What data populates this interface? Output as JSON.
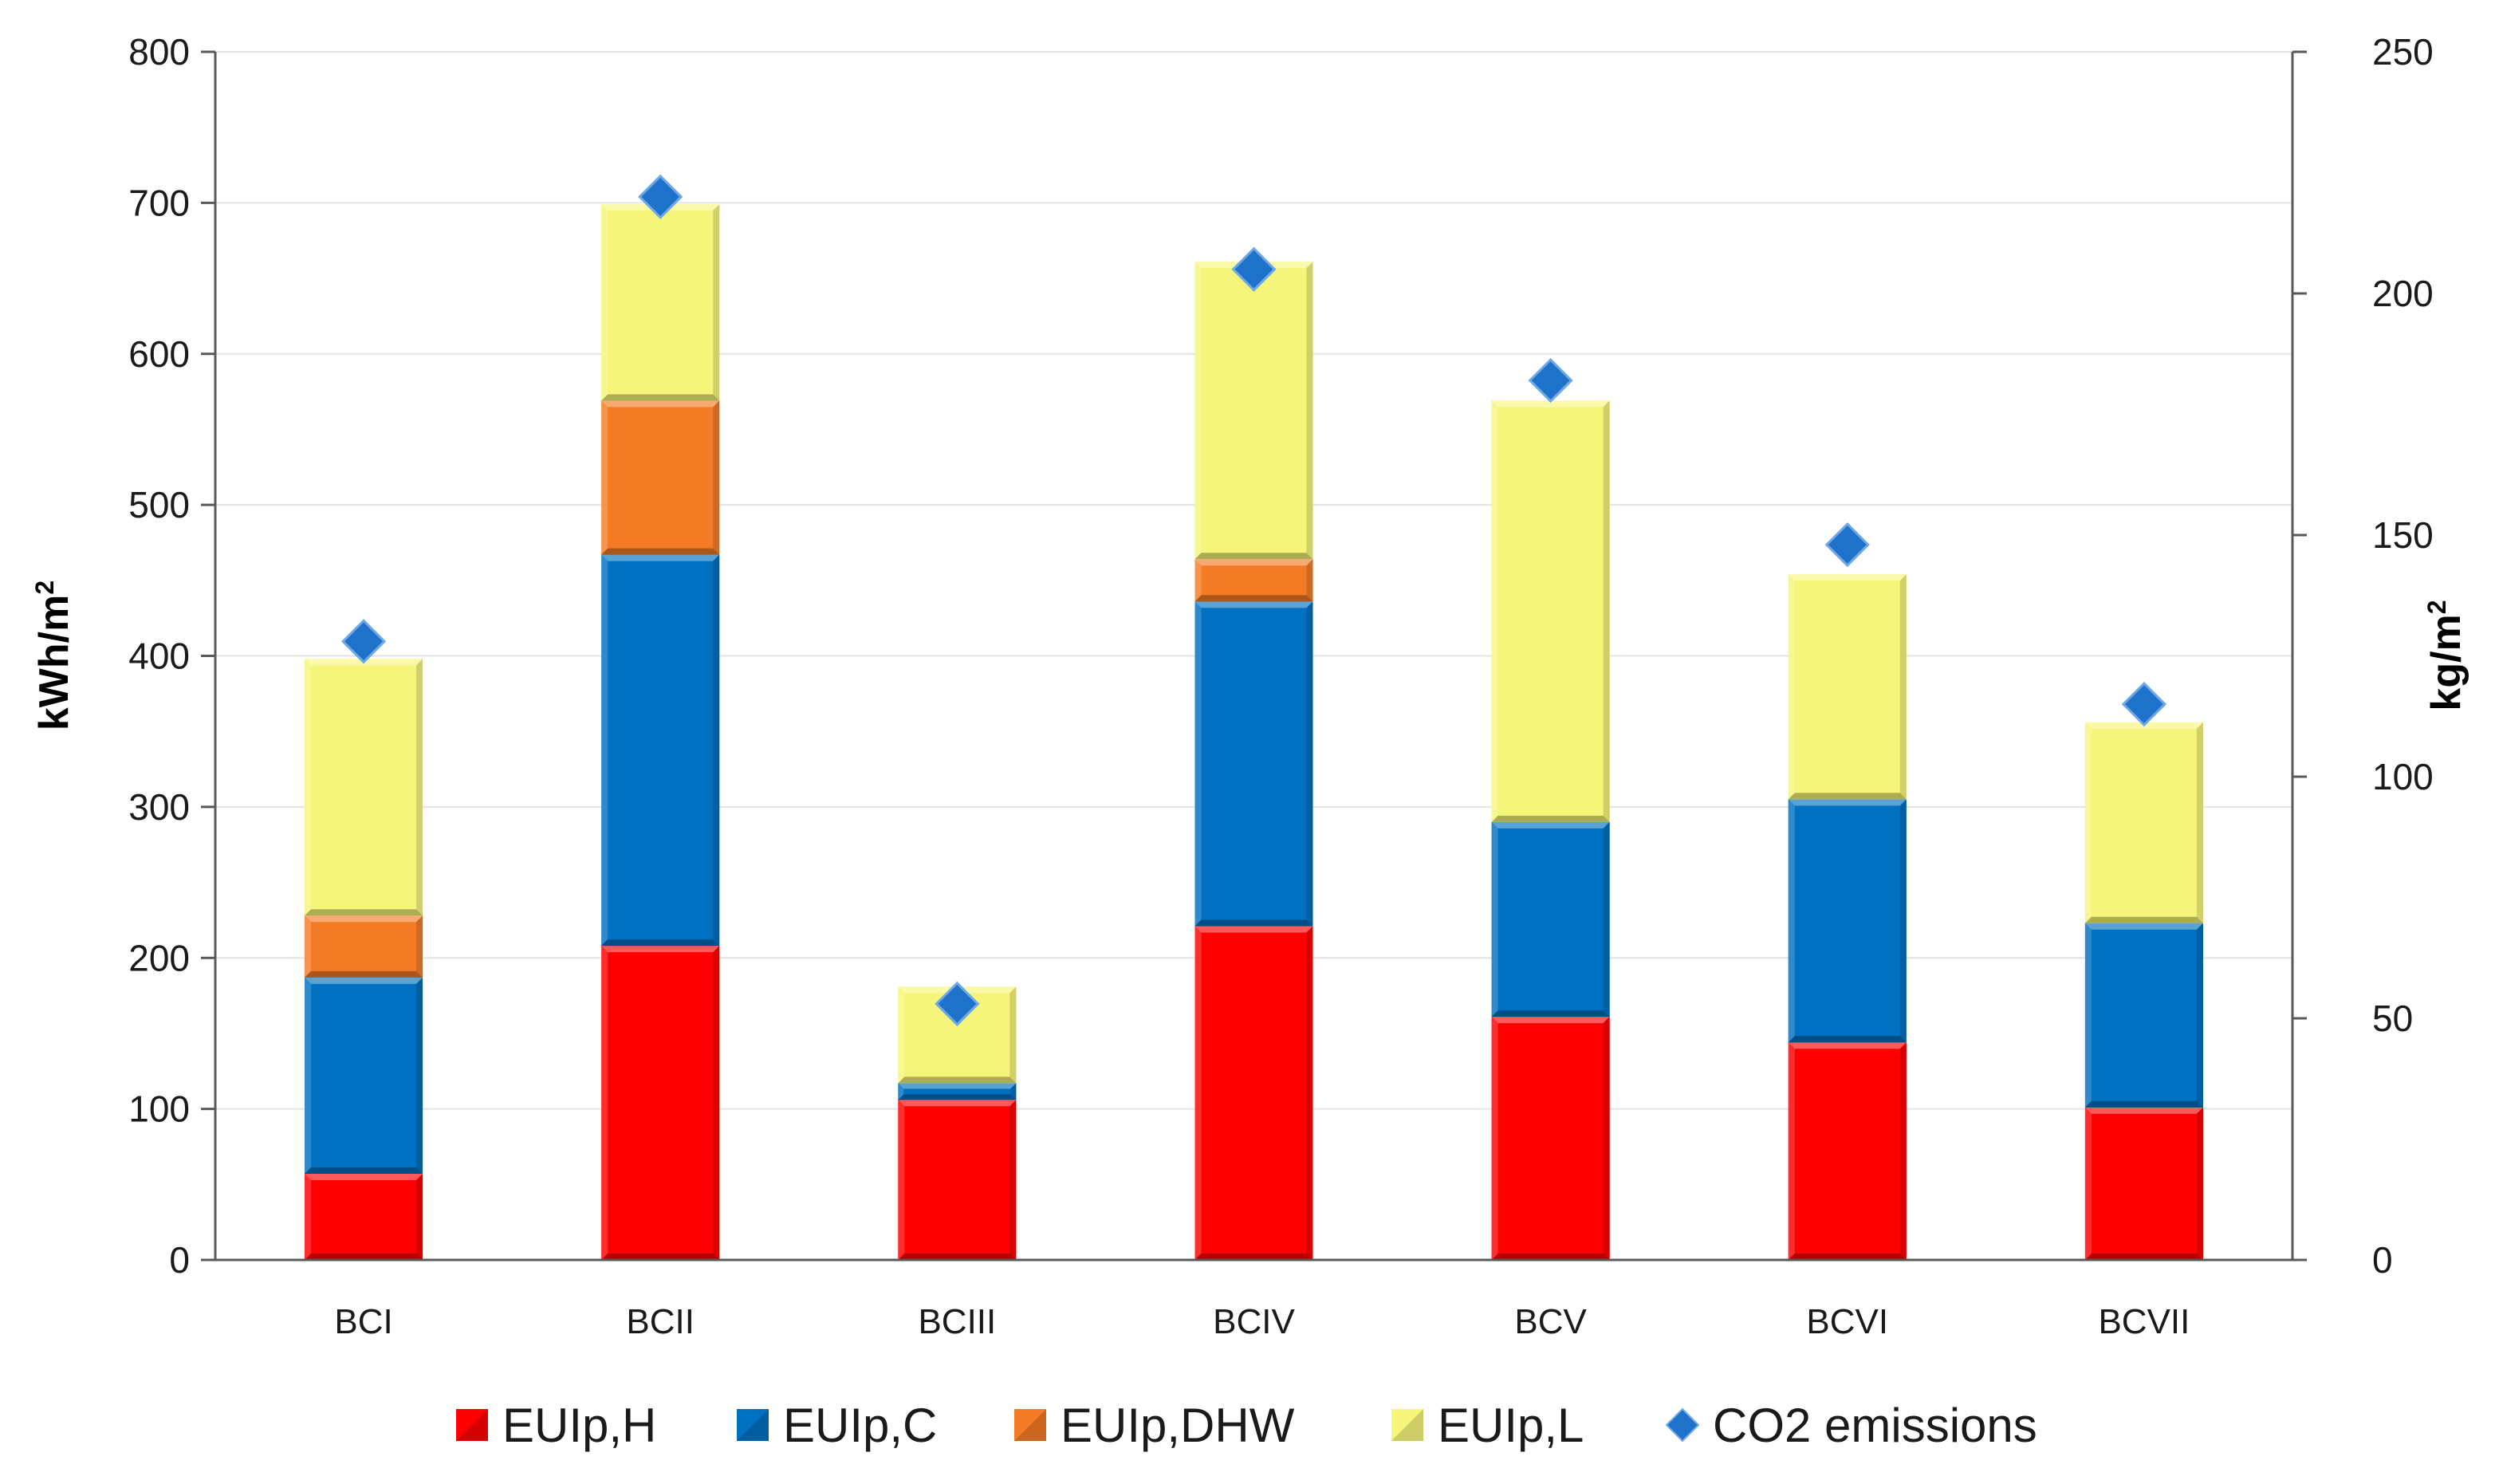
{
  "chart_data": {
    "type": "bar",
    "stacked": true,
    "categories": [
      "BCI",
      "BCII",
      "BCIII",
      "BCIV",
      "BCV",
      "BCVI",
      "BCVII"
    ],
    "series": [
      {
        "name": "EUIp,H",
        "color": "#ff0000",
        "values": [
          57,
          208,
          106,
          221,
          161,
          144,
          101
        ]
      },
      {
        "name": "EUIp,C",
        "color": "#0070c0",
        "values": [
          130,
          259,
          11,
          215,
          129,
          161,
          122
        ]
      },
      {
        "name": "EUIp,DHW",
        "color": "#f47b25",
        "values": [
          41,
          102,
          0,
          28,
          0,
          0,
          0
        ]
      },
      {
        "name": "EUIp,L",
        "color": "#f5f57a",
        "values": [
          170,
          130,
          64,
          197,
          279,
          149,
          133
        ]
      }
    ],
    "secondary_series": {
      "name": "CO2 emissions",
      "color": "#1f72c9",
      "type": "scatter",
      "marker": "diamond",
      "values": [
        128,
        220,
        53,
        205,
        182,
        148,
        115
      ]
    },
    "ylabel": "kWh/m",
    "ylabel_sup": "2",
    "ylim": [
      0,
      800
    ],
    "yticks": [
      0,
      100,
      200,
      300,
      400,
      500,
      600,
      700,
      800
    ],
    "y2label": "kg/m",
    "y2label_sup": "2",
    "y2lim": [
      0,
      250
    ],
    "y2ticks": [
      0,
      50,
      100,
      150,
      200,
      250
    ],
    "grid": true,
    "legend_position": "bottom"
  }
}
